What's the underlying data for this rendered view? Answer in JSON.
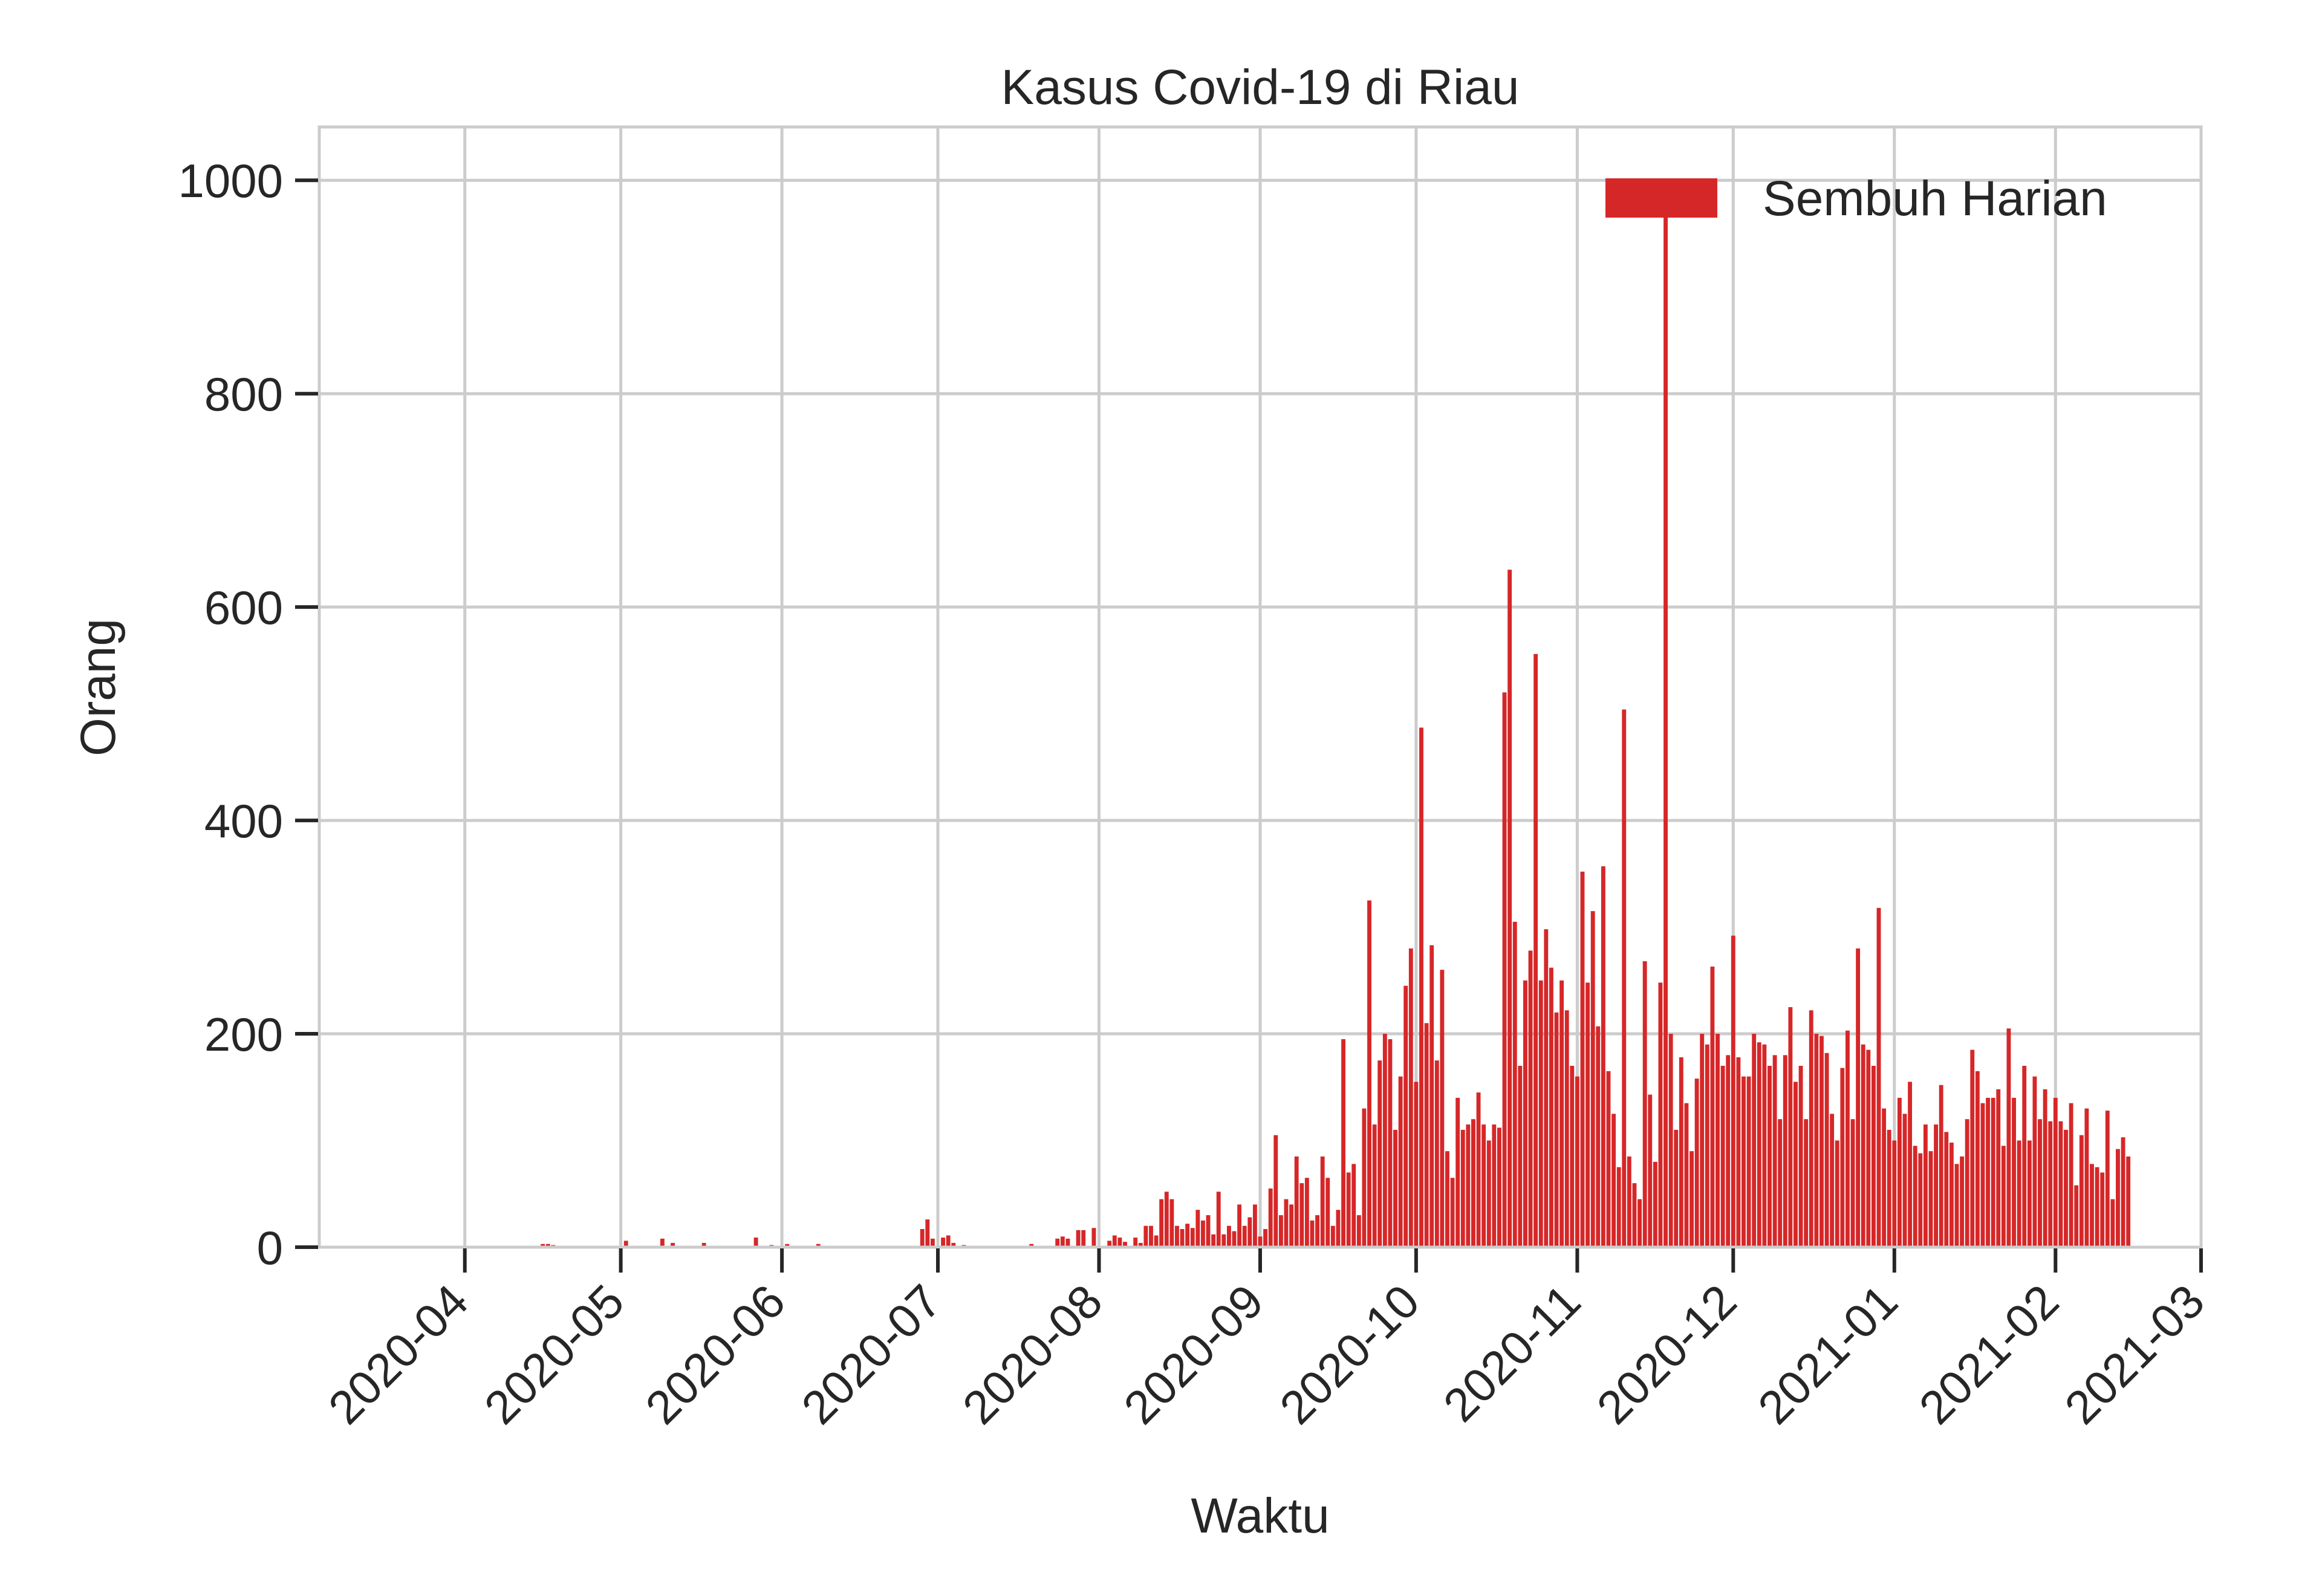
{
  "chart_data": {
    "type": "bar",
    "title": "Kasus Covid-19 di Riau",
    "xlabel": "Waktu",
    "ylabel": "Orang",
    "x_range": [
      "2020-03-04",
      "2021-03-01"
    ],
    "ylim": [
      0,
      1050
    ],
    "y_ticks": [
      0,
      200,
      400,
      600,
      800,
      1000
    ],
    "x_ticks": [
      "2020-04-01",
      "2020-05-01",
      "2020-06-01",
      "2020-07-01",
      "2020-08-01",
      "2020-09-01",
      "2020-10-01",
      "2020-11-01",
      "2020-12-01",
      "2021-01-01",
      "2021-02-01",
      "2021-03-01"
    ],
    "x_tick_labels": [
      "2020-04",
      "2020-05",
      "2020-06",
      "2020-07",
      "2020-08",
      "2020-09",
      "2020-10",
      "2020-11",
      "2020-12",
      "2021-01",
      "2021-02",
      "2021-03"
    ],
    "grid": true,
    "legend_position": "top-right",
    "bar_color": "#d62728",
    "series": [
      {
        "name": "Sembuh Harian",
        "points": [
          [
            "2020-04-16",
            3
          ],
          [
            "2020-04-17",
            3
          ],
          [
            "2020-04-18",
            2
          ],
          [
            "2020-05-02",
            6
          ],
          [
            "2020-05-09",
            8
          ],
          [
            "2020-05-11",
            4
          ],
          [
            "2020-05-17",
            4
          ],
          [
            "2020-05-27",
            9
          ],
          [
            "2020-05-30",
            2
          ],
          [
            "2020-06-02",
            3
          ],
          [
            "2020-06-08",
            3
          ],
          [
            "2020-06-28",
            17
          ],
          [
            "2020-06-29",
            26
          ],
          [
            "2020-06-30",
            8
          ],
          [
            "2020-07-02",
            9
          ],
          [
            "2020-07-03",
            11
          ],
          [
            "2020-07-04",
            4
          ],
          [
            "2020-07-06",
            2
          ],
          [
            "2020-07-19",
            3
          ],
          [
            "2020-07-24",
            8
          ],
          [
            "2020-07-25",
            10
          ],
          [
            "2020-07-26",
            8
          ],
          [
            "2020-07-28",
            16
          ],
          [
            "2020-07-29",
            16
          ],
          [
            "2020-07-31",
            18
          ],
          [
            "2020-08-03",
            6
          ],
          [
            "2020-08-04",
            11
          ],
          [
            "2020-08-05",
            9
          ],
          [
            "2020-08-06",
            5
          ],
          [
            "2020-08-08",
            9
          ],
          [
            "2020-08-09",
            4
          ],
          [
            "2020-08-10",
            20
          ],
          [
            "2020-08-11",
            20
          ],
          [
            "2020-08-12",
            11
          ],
          [
            "2020-08-13",
            45
          ],
          [
            "2020-08-14",
            52
          ],
          [
            "2020-08-15",
            45
          ],
          [
            "2020-08-16",
            20
          ],
          [
            "2020-08-17",
            17
          ],
          [
            "2020-08-18",
            22
          ],
          [
            "2020-08-19",
            18
          ],
          [
            "2020-08-20",
            35
          ],
          [
            "2020-08-21",
            25
          ],
          [
            "2020-08-22",
            30
          ],
          [
            "2020-08-23",
            12
          ],
          [
            "2020-08-24",
            52
          ],
          [
            "2020-08-25",
            12
          ],
          [
            "2020-08-26",
            20
          ],
          [
            "2020-08-27",
            15
          ],
          [
            "2020-08-28",
            40
          ],
          [
            "2020-08-29",
            20
          ],
          [
            "2020-08-30",
            28
          ],
          [
            "2020-08-31",
            40
          ],
          [
            "2020-09-01",
            10
          ],
          [
            "2020-09-02",
            17
          ],
          [
            "2020-09-03",
            55
          ],
          [
            "2020-09-04",
            105
          ],
          [
            "2020-09-05",
            30
          ],
          [
            "2020-09-06",
            45
          ],
          [
            "2020-09-07",
            40
          ],
          [
            "2020-09-08",
            85
          ],
          [
            "2020-09-09",
            60
          ],
          [
            "2020-09-10",
            65
          ],
          [
            "2020-09-11",
            25
          ],
          [
            "2020-09-12",
            30
          ],
          [
            "2020-09-13",
            85
          ],
          [
            "2020-09-14",
            65
          ],
          [
            "2020-09-15",
            20
          ],
          [
            "2020-09-16",
            35
          ],
          [
            "2020-09-17",
            195
          ],
          [
            "2020-09-18",
            70
          ],
          [
            "2020-09-19",
            78
          ],
          [
            "2020-09-20",
            30
          ],
          [
            "2020-09-21",
            130
          ],
          [
            "2020-09-22",
            325
          ],
          [
            "2020-09-23",
            115
          ],
          [
            "2020-09-24",
            175
          ],
          [
            "2020-09-25",
            200
          ],
          [
            "2020-09-26",
            195
          ],
          [
            "2020-09-27",
            110
          ],
          [
            "2020-09-28",
            160
          ],
          [
            "2020-09-29",
            245
          ],
          [
            "2020-09-30",
            280
          ],
          [
            "2020-10-01",
            155
          ],
          [
            "2020-10-02",
            487
          ],
          [
            "2020-10-03",
            210
          ],
          [
            "2020-10-04",
            283
          ],
          [
            "2020-10-05",
            175
          ],
          [
            "2020-10-06",
            260
          ],
          [
            "2020-10-07",
            90
          ],
          [
            "2020-10-08",
            65
          ],
          [
            "2020-10-09",
            140
          ],
          [
            "2020-10-10",
            110
          ],
          [
            "2020-10-11",
            115
          ],
          [
            "2020-10-12",
            120
          ],
          [
            "2020-10-13",
            145
          ],
          [
            "2020-10-14",
            115
          ],
          [
            "2020-10-15",
            100
          ],
          [
            "2020-10-16",
            115
          ],
          [
            "2020-10-17",
            112
          ],
          [
            "2020-10-18",
            520
          ],
          [
            "2020-10-19",
            635
          ],
          [
            "2020-10-20",
            305
          ],
          [
            "2020-10-21",
            170
          ],
          [
            "2020-10-22",
            250
          ],
          [
            "2020-10-23",
            278
          ],
          [
            "2020-10-24",
            556
          ],
          [
            "2020-10-25",
            250
          ],
          [
            "2020-10-26",
            298
          ],
          [
            "2020-10-27",
            262
          ],
          [
            "2020-10-28",
            220
          ],
          [
            "2020-10-29",
            250
          ],
          [
            "2020-10-30",
            222
          ],
          [
            "2020-10-31",
            170
          ],
          [
            "2020-11-01",
            160
          ],
          [
            "2020-11-02",
            352
          ],
          [
            "2020-11-03",
            248
          ],
          [
            "2020-11-04",
            315
          ],
          [
            "2020-11-05",
            207
          ],
          [
            "2020-11-06",
            357
          ],
          [
            "2020-11-07",
            165
          ],
          [
            "2020-11-08",
            125
          ],
          [
            "2020-11-09",
            75
          ],
          [
            "2020-11-10",
            504
          ],
          [
            "2020-11-11",
            85
          ],
          [
            "2020-11-12",
            60
          ],
          [
            "2020-11-13",
            45
          ],
          [
            "2020-11-14",
            268
          ],
          [
            "2020-11-15",
            143
          ],
          [
            "2020-11-16",
            80
          ],
          [
            "2020-11-17",
            248
          ],
          [
            "2020-11-18",
            968
          ],
          [
            "2020-11-19",
            200
          ],
          [
            "2020-11-20",
            110
          ],
          [
            "2020-11-21",
            178
          ],
          [
            "2020-11-22",
            135
          ],
          [
            "2020-11-23",
            90
          ],
          [
            "2020-11-24",
            158
          ],
          [
            "2020-11-25",
            200
          ],
          [
            "2020-11-26",
            190
          ],
          [
            "2020-11-27",
            263
          ],
          [
            "2020-11-28",
            200
          ],
          [
            "2020-11-29",
            170
          ],
          [
            "2020-11-30",
            180
          ],
          [
            "2020-12-01",
            292
          ],
          [
            "2020-12-02",
            178
          ],
          [
            "2020-12-03",
            160
          ],
          [
            "2020-12-04",
            160
          ],
          [
            "2020-12-05",
            200
          ],
          [
            "2020-12-06",
            192
          ],
          [
            "2020-12-07",
            190
          ],
          [
            "2020-12-08",
            170
          ],
          [
            "2020-12-09",
            180
          ],
          [
            "2020-12-10",
            120
          ],
          [
            "2020-12-11",
            180
          ],
          [
            "2020-12-12",
            225
          ],
          [
            "2020-12-13",
            155
          ],
          [
            "2020-12-14",
            170
          ],
          [
            "2020-12-15",
            120
          ],
          [
            "2020-12-16",
            222
          ],
          [
            "2020-12-17",
            200
          ],
          [
            "2020-12-18",
            198
          ],
          [
            "2020-12-19",
            182
          ],
          [
            "2020-12-20",
            125
          ],
          [
            "2020-12-21",
            100
          ],
          [
            "2020-12-22",
            168
          ],
          [
            "2020-12-23",
            203
          ],
          [
            "2020-12-24",
            120
          ],
          [
            "2020-12-25",
            280
          ],
          [
            "2020-12-26",
            190
          ],
          [
            "2020-12-27",
            185
          ],
          [
            "2020-12-28",
            170
          ],
          [
            "2020-12-29",
            318
          ],
          [
            "2020-12-30",
            130
          ],
          [
            "2020-12-31",
            110
          ],
          [
            "2021-01-01",
            100
          ],
          [
            "2021-01-02",
            140
          ],
          [
            "2021-01-03",
            125
          ],
          [
            "2021-01-04",
            155
          ],
          [
            "2021-01-05",
            95
          ],
          [
            "2021-01-06",
            88
          ],
          [
            "2021-01-07",
            115
          ],
          [
            "2021-01-08",
            90
          ],
          [
            "2021-01-09",
            115
          ],
          [
            "2021-01-10",
            152
          ],
          [
            "2021-01-11",
            108
          ],
          [
            "2021-01-12",
            98
          ],
          [
            "2021-01-13",
            78
          ],
          [
            "2021-01-14",
            85
          ],
          [
            "2021-01-15",
            120
          ],
          [
            "2021-01-16",
            185
          ],
          [
            "2021-01-17",
            165
          ],
          [
            "2021-01-18",
            135
          ],
          [
            "2021-01-19",
            140
          ],
          [
            "2021-01-20",
            140
          ],
          [
            "2021-01-21",
            148
          ],
          [
            "2021-01-22",
            95
          ],
          [
            "2021-01-23",
            205
          ],
          [
            "2021-01-24",
            140
          ],
          [
            "2021-01-25",
            100
          ],
          [
            "2021-01-26",
            170
          ],
          [
            "2021-01-27",
            100
          ],
          [
            "2021-01-28",
            160
          ],
          [
            "2021-01-29",
            120
          ],
          [
            "2021-01-30",
            148
          ],
          [
            "2021-01-31",
            118
          ],
          [
            "2021-02-01",
            140
          ],
          [
            "2021-02-02",
            118
          ],
          [
            "2021-02-03",
            110
          ],
          [
            "2021-02-04",
            135
          ],
          [
            "2021-02-05",
            58
          ],
          [
            "2021-02-06",
            105
          ],
          [
            "2021-02-07",
            130
          ],
          [
            "2021-02-08",
            78
          ],
          [
            "2021-02-09",
            75
          ],
          [
            "2021-02-10",
            70
          ],
          [
            "2021-02-11",
            128
          ],
          [
            "2021-02-12",
            45
          ],
          [
            "2021-02-13",
            92
          ],
          [
            "2021-02-14",
            103
          ],
          [
            "2021-02-15",
            85
          ]
        ]
      }
    ]
  }
}
